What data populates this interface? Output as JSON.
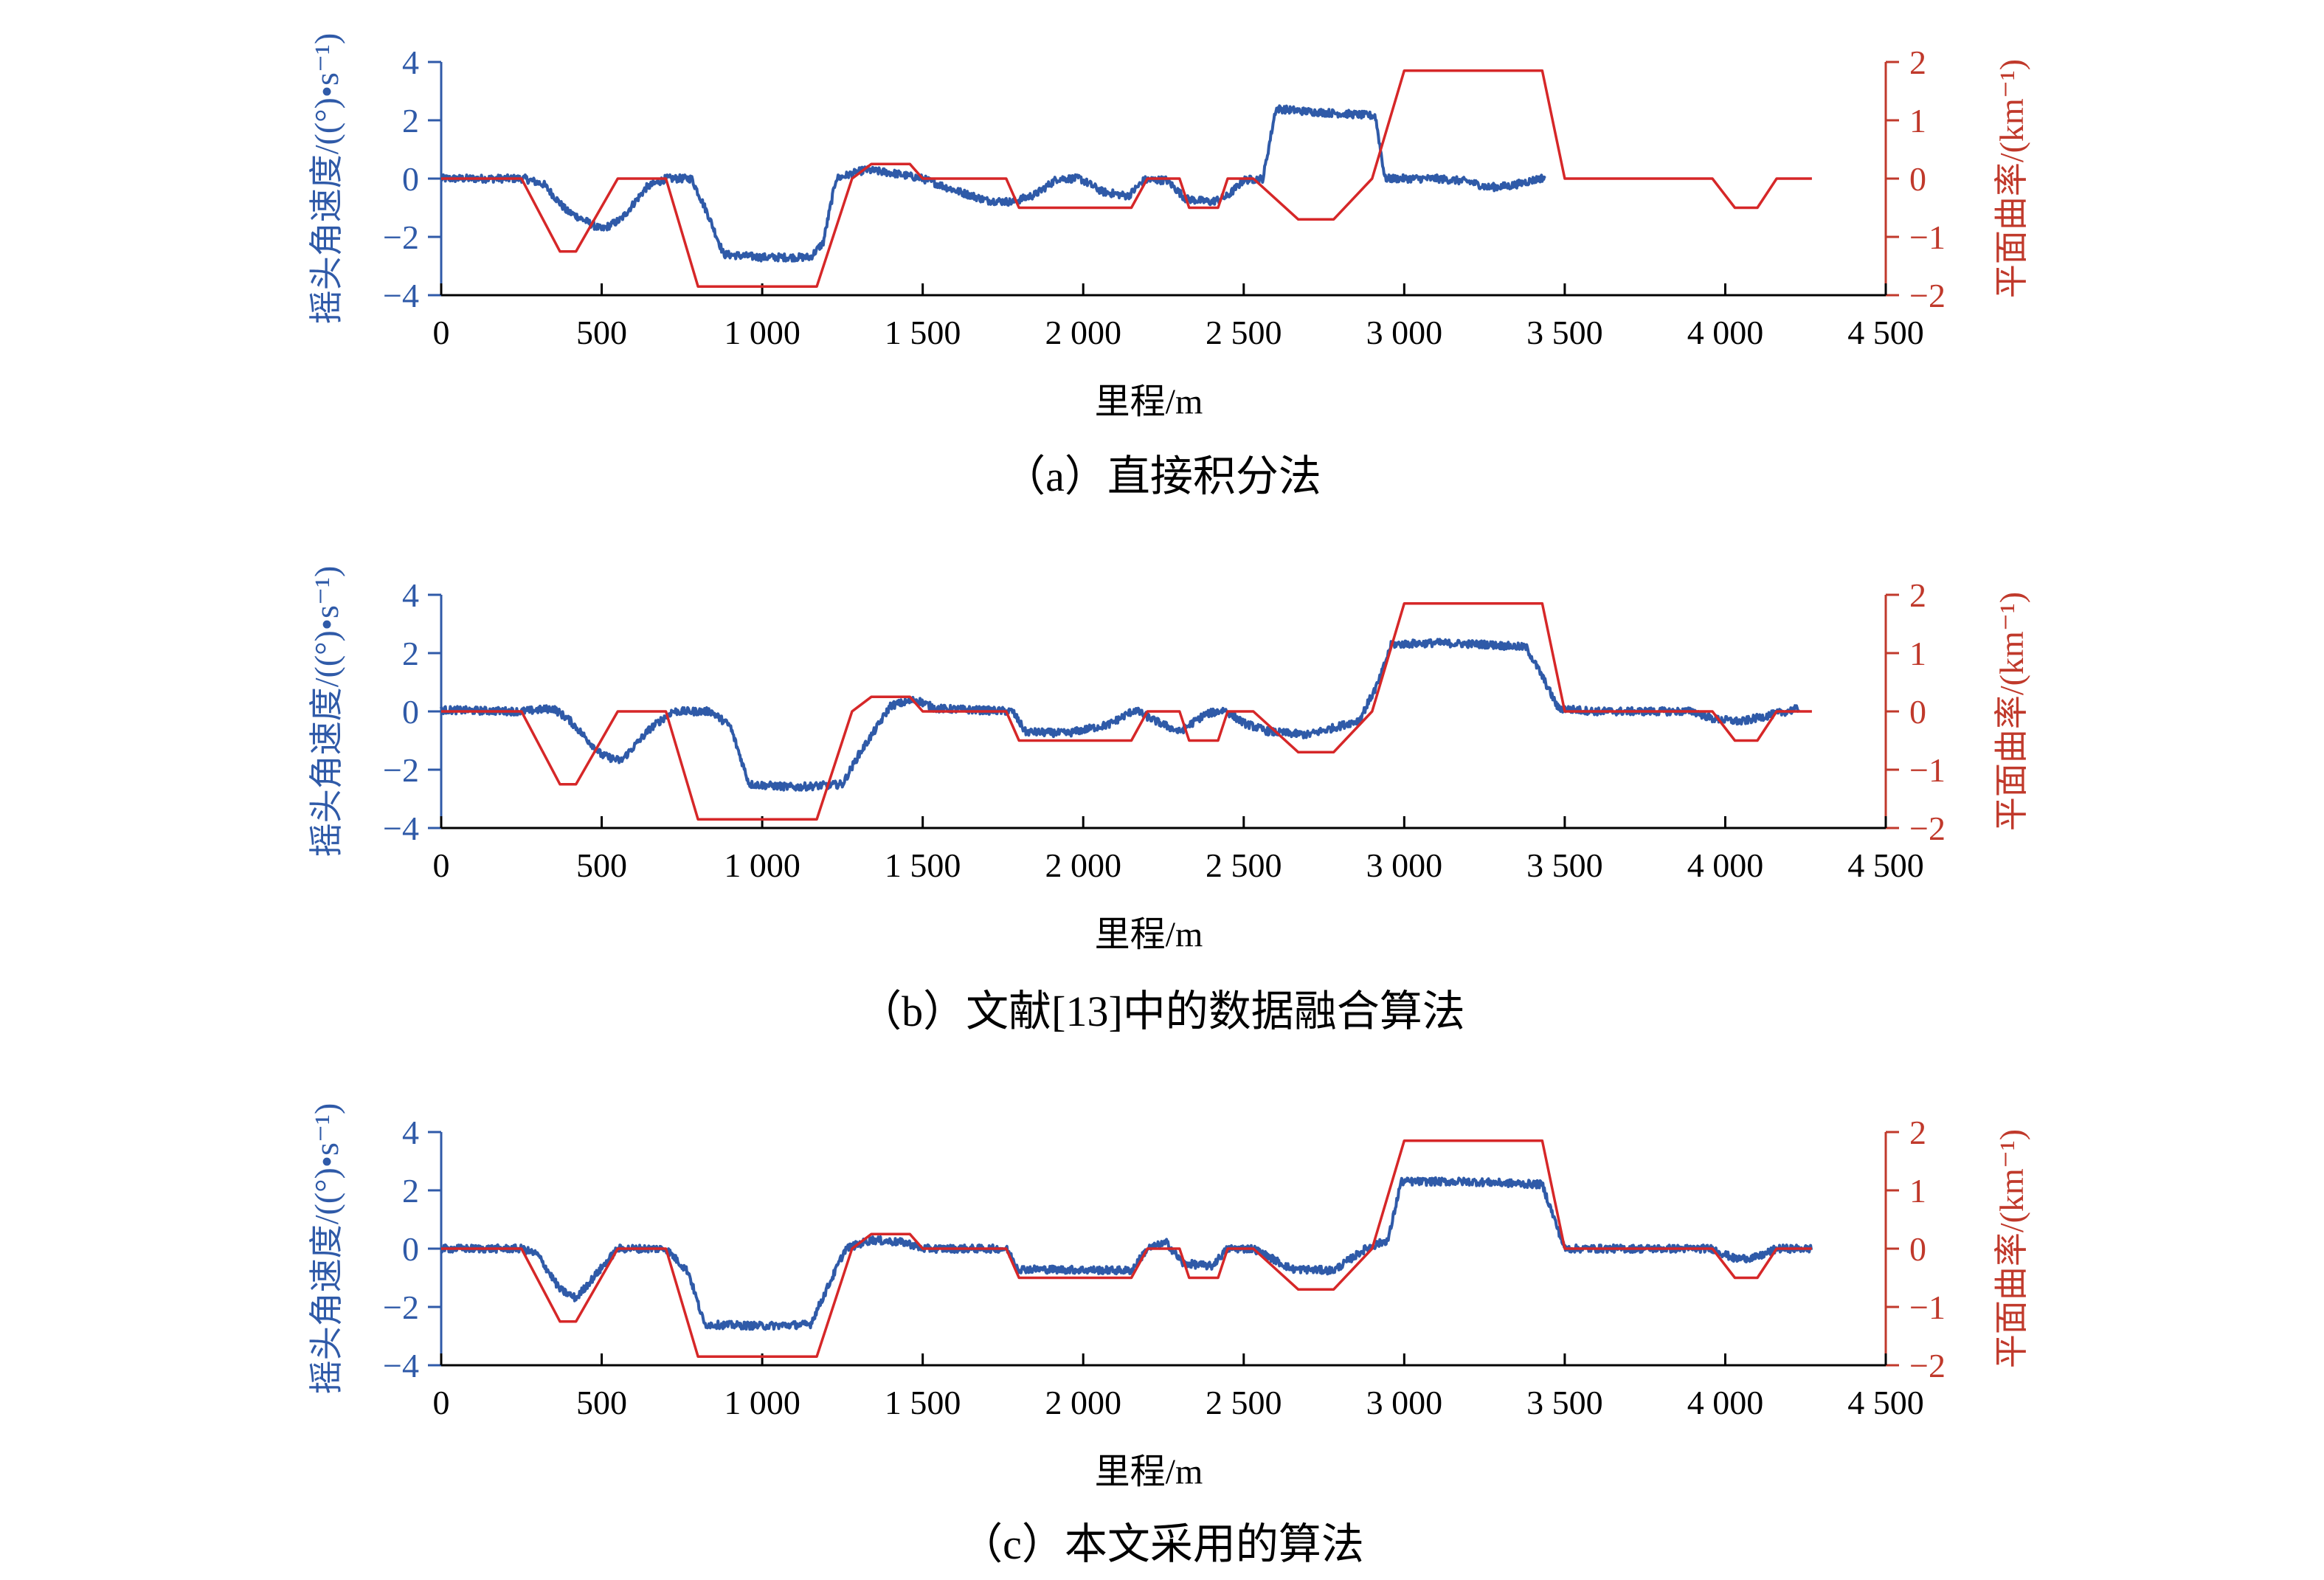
{
  "chart_data": [
    {
      "type": "line",
      "caption": "（a）直接积分法",
      "xlabel": "里程/m",
      "ylabel_left": "摇头角速度/((°)•s⁻¹)",
      "ylabel_right": "平面曲率/(km⁻¹)",
      "xlim": [
        0,
        4500
      ],
      "ylim_left": [
        -4,
        4
      ],
      "ylim_right": [
        -2,
        2
      ],
      "x_ticks": [
        "0",
        "500",
        "1 000",
        "1 500",
        "2 000",
        "2 500",
        "3 000",
        "3 500",
        "4 000",
        "4 500"
      ],
      "y_ticks_left": [
        "4",
        "2",
        "0",
        "−2",
        "−4"
      ],
      "y_ticks_right": [
        "2",
        "1",
        "0",
        "−1",
        "−2"
      ],
      "series": [
        {
          "axis": "left",
          "color": "#2f5aa8",
          "noise": 0.13,
          "points": [
            [
              0,
              0
            ],
            [
              260,
              0
            ],
            [
              320,
              -0.2
            ],
            [
              390,
              -1.1
            ],
            [
              500,
              -1.75
            ],
            [
              560,
              -1.4
            ],
            [
              640,
              -0.3
            ],
            [
              700,
              0
            ],
            [
              780,
              0
            ],
            [
              830,
              -1.2
            ],
            [
              880,
              -2.6
            ],
            [
              1000,
              -2.7
            ],
            [
              1150,
              -2.7
            ],
            [
              1190,
              -2.2
            ],
            [
              1230,
              0
            ],
            [
              1320,
              0.3
            ],
            [
              1400,
              0.2
            ],
            [
              1500,
              0
            ],
            [
              1600,
              -0.4
            ],
            [
              1700,
              -0.75
            ],
            [
              1780,
              -0.8
            ],
            [
              1850,
              -0.55
            ],
            [
              1920,
              0
            ],
            [
              1990,
              0
            ],
            [
              2060,
              -0.45
            ],
            [
              2140,
              -0.6
            ],
            [
              2190,
              -0.05
            ],
            [
              2260,
              -0.05
            ],
            [
              2320,
              -0.7
            ],
            [
              2400,
              -0.8
            ],
            [
              2450,
              -0.6
            ],
            [
              2500,
              -0.05
            ],
            [
              2560,
              0
            ],
            [
              2600,
              2.4
            ],
            [
              2700,
              2.3
            ],
            [
              2850,
              2.2
            ],
            [
              2910,
              2.15
            ],
            [
              2940,
              0
            ],
            [
              3100,
              0
            ],
            [
              3200,
              -0.1
            ],
            [
              3260,
              -0.3
            ],
            [
              3330,
              -0.25
            ],
            [
              3440,
              0.05
            ]
          ]
        },
        {
          "axis": "right",
          "color": "#d62728",
          "points": [
            [
              0,
              0
            ],
            [
              250,
              0
            ],
            [
              370,
              -1.25
            ],
            [
              420,
              -1.25
            ],
            [
              550,
              0
            ],
            [
              700,
              0
            ],
            [
              800,
              -1.85
            ],
            [
              1170,
              -1.85
            ],
            [
              1280,
              0
            ],
            [
              1340,
              0.25
            ],
            [
              1460,
              0.25
            ],
            [
              1500,
              0
            ],
            [
              1760,
              0
            ],
            [
              1800,
              -0.5
            ],
            [
              2150,
              -0.5
            ],
            [
              2200,
              0
            ],
            [
              2300,
              0
            ],
            [
              2330,
              -0.5
            ],
            [
              2420,
              -0.5
            ],
            [
              2450,
              0
            ],
            [
              2530,
              0
            ],
            [
              2670,
              -0.7
            ],
            [
              2780,
              -0.7
            ],
            [
              2900,
              0
            ],
            [
              3000,
              1.85
            ],
            [
              3430,
              1.85
            ],
            [
              3500,
              0
            ],
            [
              3960,
              0
            ],
            [
              4030,
              -0.5
            ],
            [
              4100,
              -0.5
            ],
            [
              4160,
              0
            ],
            [
              4270,
              0
            ]
          ]
        }
      ]
    },
    {
      "type": "line",
      "caption": "（b）文献[13]中的数据融合算法",
      "xlabel": "里程/m",
      "ylabel_left": "摇头角速度/((°)•s⁻¹)",
      "ylabel_right": "平面曲率/(km⁻¹)",
      "xlim": [
        0,
        4500
      ],
      "ylim_left": [
        -4,
        4
      ],
      "ylim_right": [
        -2,
        2
      ],
      "x_ticks": [
        "0",
        "500",
        "1 000",
        "1 500",
        "2 000",
        "2 500",
        "3 000",
        "3 500",
        "4 000",
        "4 500"
      ],
      "y_ticks_left": [
        "4",
        "2",
        "0",
        "−2",
        "−4"
      ],
      "y_ticks_right": [
        "2",
        "1",
        "0",
        "−1",
        "−2"
      ],
      "series": [
        {
          "axis": "left",
          "color": "#2f5aa8",
          "noise": 0.13,
          "points": [
            [
              0,
              0.05
            ],
            [
              250,
              0
            ],
            [
              350,
              0.1
            ],
            [
              400,
              -0.3
            ],
            [
              500,
              -1.5
            ],
            [
              560,
              -1.7
            ],
            [
              650,
              -0.6
            ],
            [
              720,
              0
            ],
            [
              840,
              0
            ],
            [
              900,
              -0.5
            ],
            [
              960,
              -2.5
            ],
            [
              1100,
              -2.6
            ],
            [
              1250,
              -2.5
            ],
            [
              1300,
              -1.5
            ],
            [
              1360,
              -0.5
            ],
            [
              1400,
              0.2
            ],
            [
              1480,
              0.4
            ],
            [
              1540,
              0.1
            ],
            [
              1780,
              0
            ],
            [
              1820,
              -0.7
            ],
            [
              1950,
              -0.75
            ],
            [
              2080,
              -0.45
            ],
            [
              2160,
              0.05
            ],
            [
              2220,
              -0.3
            ],
            [
              2300,
              -0.7
            ],
            [
              2380,
              -0.1
            ],
            [
              2440,
              0.05
            ],
            [
              2500,
              -0.4
            ],
            [
              2580,
              -0.7
            ],
            [
              2700,
              -0.8
            ],
            [
              2800,
              -0.5
            ],
            [
              2860,
              -0.3
            ],
            [
              2920,
              1.0
            ],
            [
              2960,
              2.3
            ],
            [
              3100,
              2.35
            ],
            [
              3250,
              2.3
            ],
            [
              3380,
              2.2
            ],
            [
              3430,
              1.2
            ],
            [
              3480,
              0.1
            ],
            [
              3600,
              0
            ],
            [
              3700,
              0
            ],
            [
              3850,
              0
            ],
            [
              3900,
              0
            ],
            [
              3960,
              -0.25
            ],
            [
              4050,
              -0.35
            ],
            [
              4150,
              -0.1
            ],
            [
              4230,
              0.1
            ]
          ]
        },
        {
          "axis": "right",
          "color": "#d62728",
          "points": [
            [
              0,
              0
            ],
            [
              250,
              0
            ],
            [
              370,
              -1.25
            ],
            [
              420,
              -1.25
            ],
            [
              550,
              0
            ],
            [
              700,
              0
            ],
            [
              800,
              -1.85
            ],
            [
              1170,
              -1.85
            ],
            [
              1280,
              0
            ],
            [
              1340,
              0.25
            ],
            [
              1460,
              0.25
            ],
            [
              1500,
              0
            ],
            [
              1760,
              0
            ],
            [
              1800,
              -0.5
            ],
            [
              2150,
              -0.5
            ],
            [
              2200,
              0
            ],
            [
              2300,
              0
            ],
            [
              2330,
              -0.5
            ],
            [
              2420,
              -0.5
            ],
            [
              2450,
              0
            ],
            [
              2530,
              0
            ],
            [
              2670,
              -0.7
            ],
            [
              2780,
              -0.7
            ],
            [
              2900,
              0
            ],
            [
              3000,
              1.85
            ],
            [
              3430,
              1.85
            ],
            [
              3500,
              0
            ],
            [
              3960,
              0
            ],
            [
              4030,
              -0.5
            ],
            [
              4100,
              -0.5
            ],
            [
              4160,
              0
            ],
            [
              4270,
              0
            ]
          ]
        }
      ]
    },
    {
      "type": "line",
      "caption": "（c）本文采用的算法",
      "xlabel": "里程/m",
      "ylabel_left": "摇头角速度/((°)•s⁻¹)",
      "ylabel_right": "平面曲率/(km⁻¹)",
      "xlim": [
        0,
        4500
      ],
      "ylim_left": [
        -4,
        4
      ],
      "ylim_right": [
        -2,
        2
      ],
      "x_ticks": [
        "0",
        "500",
        "1 000",
        "1 500",
        "2 000",
        "2 500",
        "3 000",
        "3 500",
        "4 000",
        "4 500"
      ],
      "y_ticks_left": [
        "4",
        "2",
        "0",
        "−2",
        "−4"
      ],
      "y_ticks_right": [
        "2",
        "1",
        "0",
        "−1",
        "−2"
      ],
      "series": [
        {
          "axis": "left",
          "color": "#2f5aa8",
          "noise": 0.13,
          "points": [
            [
              0,
              0
            ],
            [
              250,
              0
            ],
            [
              300,
              -0.2
            ],
            [
              370,
              -1.4
            ],
            [
              420,
              -1.7
            ],
            [
              550,
              0
            ],
            [
              700,
              0
            ],
            [
              770,
              -0.8
            ],
            [
              820,
              -2.6
            ],
            [
              1000,
              -2.65
            ],
            [
              1150,
              -2.6
            ],
            [
              1260,
              0
            ],
            [
              1340,
              0.3
            ],
            [
              1450,
              0.2
            ],
            [
              1500,
              0
            ],
            [
              1760,
              0
            ],
            [
              1800,
              -0.7
            ],
            [
              2150,
              -0.75
            ],
            [
              2200,
              0
            ],
            [
              2260,
              0.2
            ],
            [
              2310,
              -0.5
            ],
            [
              2400,
              -0.6
            ],
            [
              2450,
              0
            ],
            [
              2530,
              0
            ],
            [
              2650,
              -0.7
            ],
            [
              2780,
              -0.75
            ],
            [
              2880,
              0
            ],
            [
              2950,
              0.3
            ],
            [
              2990,
              2.3
            ],
            [
              3200,
              2.3
            ],
            [
              3430,
              2.2
            ],
            [
              3500,
              0
            ],
            [
              3960,
              0
            ],
            [
              4030,
              -0.35
            ],
            [
              4100,
              -0.3
            ],
            [
              4160,
              0
            ],
            [
              4270,
              0
            ]
          ]
        },
        {
          "axis": "right",
          "color": "#d62728",
          "points": [
            [
              0,
              0
            ],
            [
              250,
              0
            ],
            [
              370,
              -1.25
            ],
            [
              420,
              -1.25
            ],
            [
              550,
              0
            ],
            [
              700,
              0
            ],
            [
              800,
              -1.85
            ],
            [
              1170,
              -1.85
            ],
            [
              1280,
              0
            ],
            [
              1340,
              0.25
            ],
            [
              1460,
              0.25
            ],
            [
              1500,
              0
            ],
            [
              1760,
              0
            ],
            [
              1800,
              -0.5
            ],
            [
              2150,
              -0.5
            ],
            [
              2200,
              0
            ],
            [
              2300,
              0
            ],
            [
              2330,
              -0.5
            ],
            [
              2420,
              -0.5
            ],
            [
              2450,
              0
            ],
            [
              2530,
              0
            ],
            [
              2670,
              -0.7
            ],
            [
              2780,
              -0.7
            ],
            [
              2900,
              0
            ],
            [
              3000,
              1.85
            ],
            [
              3430,
              1.85
            ],
            [
              3500,
              0
            ],
            [
              3960,
              0
            ],
            [
              4030,
              -0.5
            ],
            [
              4100,
              -0.5
            ],
            [
              4160,
              0
            ],
            [
              4270,
              0
            ]
          ]
        }
      ]
    }
  ]
}
